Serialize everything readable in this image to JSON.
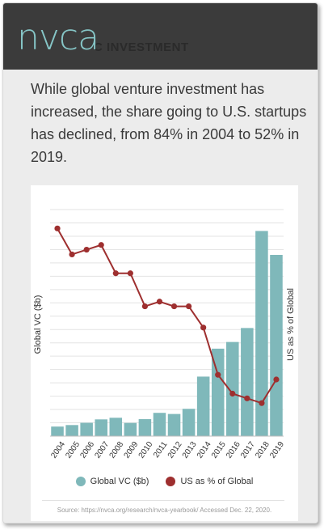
{
  "header": {
    "logo_text": "nvca",
    "ghost_text": "C INVESTMENT"
  },
  "headline": "While global venture investment has increased, the share going to U.S. startups has declined, from 84% in 2004 to 52% in 2019.",
  "source": "Source: https://nvca.org/research/nvca-yearbook/ Accessed Dec. 22, 2020.",
  "colors": {
    "bar": "#7fb8ba",
    "line": "#9e2f2f",
    "header_bg": "#3b3b3b",
    "logo": "#86c6c7"
  },
  "chart_data": {
    "type": "bar",
    "categories": [
      "2004",
      "2005",
      "2006",
      "2007",
      "2008",
      "2009",
      "2010",
      "2011",
      "2012",
      "2013",
      "2014",
      "2015",
      "2016",
      "2017",
      "2018",
      "2019"
    ],
    "ylabel": "Global VC ($b)",
    "y2label": "US as % of Global",
    "series": [
      {
        "name": "Global VC ($b)",
        "type": "bar",
        "axis": "left",
        "values": [
          7.6,
          8.8,
          10.6,
          13.3,
          14.6,
          10.5,
          13.5,
          18.5,
          17.6,
          21.7,
          47.3,
          69.5,
          74.8,
          85.9,
          163,
          144
        ]
      },
      {
        "name": "US as % of Global",
        "type": "line",
        "axis": "right",
        "values": [
          84,
          78.5,
          79.5,
          80.5,
          74.5,
          74.5,
          67.5,
          68.5,
          67.5,
          67.5,
          63,
          53,
          49,
          48,
          47,
          52
        ]
      }
    ],
    "ylim": [
      0,
      180
    ],
    "y2lim": [
      40,
      88
    ],
    "grid": true,
    "legend": "bottom"
  }
}
